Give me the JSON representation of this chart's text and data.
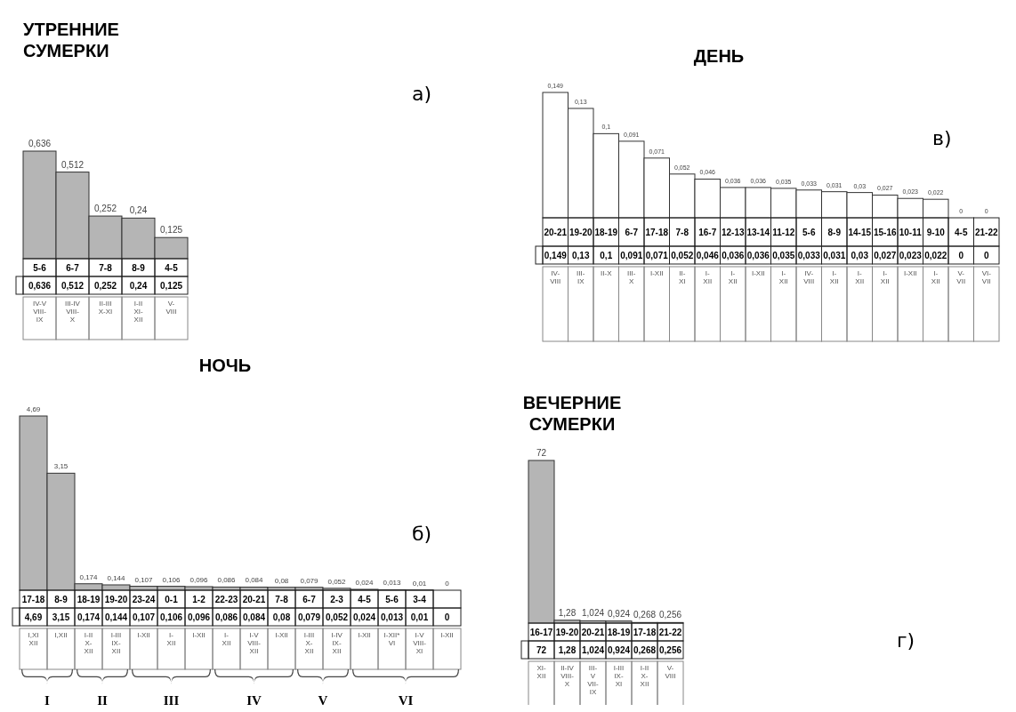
{
  "chart_data": [
    {
      "type": "bar",
      "title": "УТРЕННИЕ\nСУМЕРКИ",
      "categories": [
        "5-6",
        "6-7",
        "7-8",
        "8-9",
        "4-5"
      ],
      "values": [
        0.636,
        0.512,
        0.252,
        0.24,
        0.125
      ],
      "color": "#b5b5b5",
      "value_labels": [
        "0,636",
        "0,512",
        "0,252",
        "0,24",
        "0,125"
      ],
      "annotations": [
        "IV-V\nVIII-\nIX",
        "III-IV\nVIII-\nX",
        "II-III\nX-XI",
        "I-II\nXI-\nXII",
        "V-\nVIII",
        "а)"
      ]
    },
    {
      "type": "bar",
      "title": "ДЕНЬ",
      "categories": [
        "20-21",
        "19-20",
        "18-19",
        "6-7",
        "17-18",
        "7-8",
        "16-7",
        "12-13",
        "13-14",
        "11-12",
        "5-6",
        "8-9",
        "14-15",
        "15-16",
        "10-11",
        "9-10",
        "4-5",
        "21-22"
      ],
      "values": [
        0.149,
        0.13,
        0.1,
        0.091,
        0.071,
        0.052,
        0.046,
        0.036,
        0.036,
        0.035,
        0.033,
        0.031,
        0.03,
        0.027,
        0.023,
        0.022,
        0,
        0
      ],
      "color": "#ffffff",
      "value_labels": [
        "0,149",
        "0,13",
        "0,1",
        "0,091",
        "0,071",
        "0,052",
        "0,046",
        "0,036",
        "0,036",
        "0,035",
        "0,033",
        "0,031",
        "0,03",
        "0,027",
        "0,023",
        "0,022",
        "0",
        "0"
      ],
      "annotations": [
        "IV-\nVIII",
        "III-\nIX",
        "II-X",
        "III-\nX",
        "I-XII",
        "II-\nXI",
        "I-\nXII",
        "I-\nXII",
        "I-XII",
        "I-\nXII",
        "IV-\nVIII",
        "I-\nXII",
        "I-\nXII",
        "I-\nXII",
        "I-XII",
        "I-\nXII",
        "V-\nVII",
        "VI-\nVII",
        "в)"
      ]
    },
    {
      "type": "bar",
      "title": "НОЧЬ",
      "categories": [
        "17-18",
        "8-9",
        "18-19",
        "19-20",
        "23-24",
        "0-1",
        "1-2",
        "22-23",
        "20-21",
        "7-8",
        "6-7",
        "2-3",
        "4-5",
        "5-6",
        "3-4",
        null
      ],
      "values": [
        4.69,
        3.15,
        0.174,
        0.144,
        0.107,
        0.106,
        0.096,
        0.086,
        0.084,
        0.08,
        0.079,
        0.052,
        0.024,
        0.013,
        0.01,
        0
      ],
      "color": "#b5b5b5",
      "value_labels": [
        "4,69",
        "3,15",
        "0,174",
        "0,144",
        "0,107",
        "0,106",
        "0,096",
        "0,086",
        "0,084",
        "0,08",
        "0,079",
        "0,052",
        "0,024",
        "0,013",
        "0,01",
        "0"
      ],
      "annotations": [
        "I,XI\nXII",
        "I,XII",
        "I-II\nX-\nXII",
        "I-III\nIX-\nXII",
        "I-XII",
        "I-\nXII",
        "I-XII",
        "I-\nXII",
        "I-V\nVIII-\nXII",
        "I-XII",
        "I-III\nX-\nXII",
        "I-IV\nIX-\nXII",
        "I-XII",
        "I-XII*\nVI",
        "I-V\nVIII-\nXI",
        "I-XII",
        "I",
        "II",
        "III",
        "IV",
        "V",
        "VI",
        "б)"
      ]
    },
    {
      "type": "bar",
      "title": "ВЕЧЕРНИЕ\nСУМЕРКИ",
      "categories": [
        "16-17",
        "19-20",
        "20-21",
        "18-19",
        "17-18",
        "21-22"
      ],
      "values": [
        72,
        1.28,
        1.024,
        0.924,
        0.268,
        0.256
      ],
      "color": "#b5b5b5",
      "value_labels": [
        "72",
        "1,28",
        "1,024",
        "0,924",
        "0,268",
        "0,256"
      ],
      "annotations": [
        "XI-\nXII",
        "II-IV\nVIII-\nX",
        "III-\nV\nVII-\nIX",
        "I-III\nIX-\nXI",
        "I-II\nX-\nXII",
        "V-\nVIII",
        "г)"
      ]
    }
  ]
}
